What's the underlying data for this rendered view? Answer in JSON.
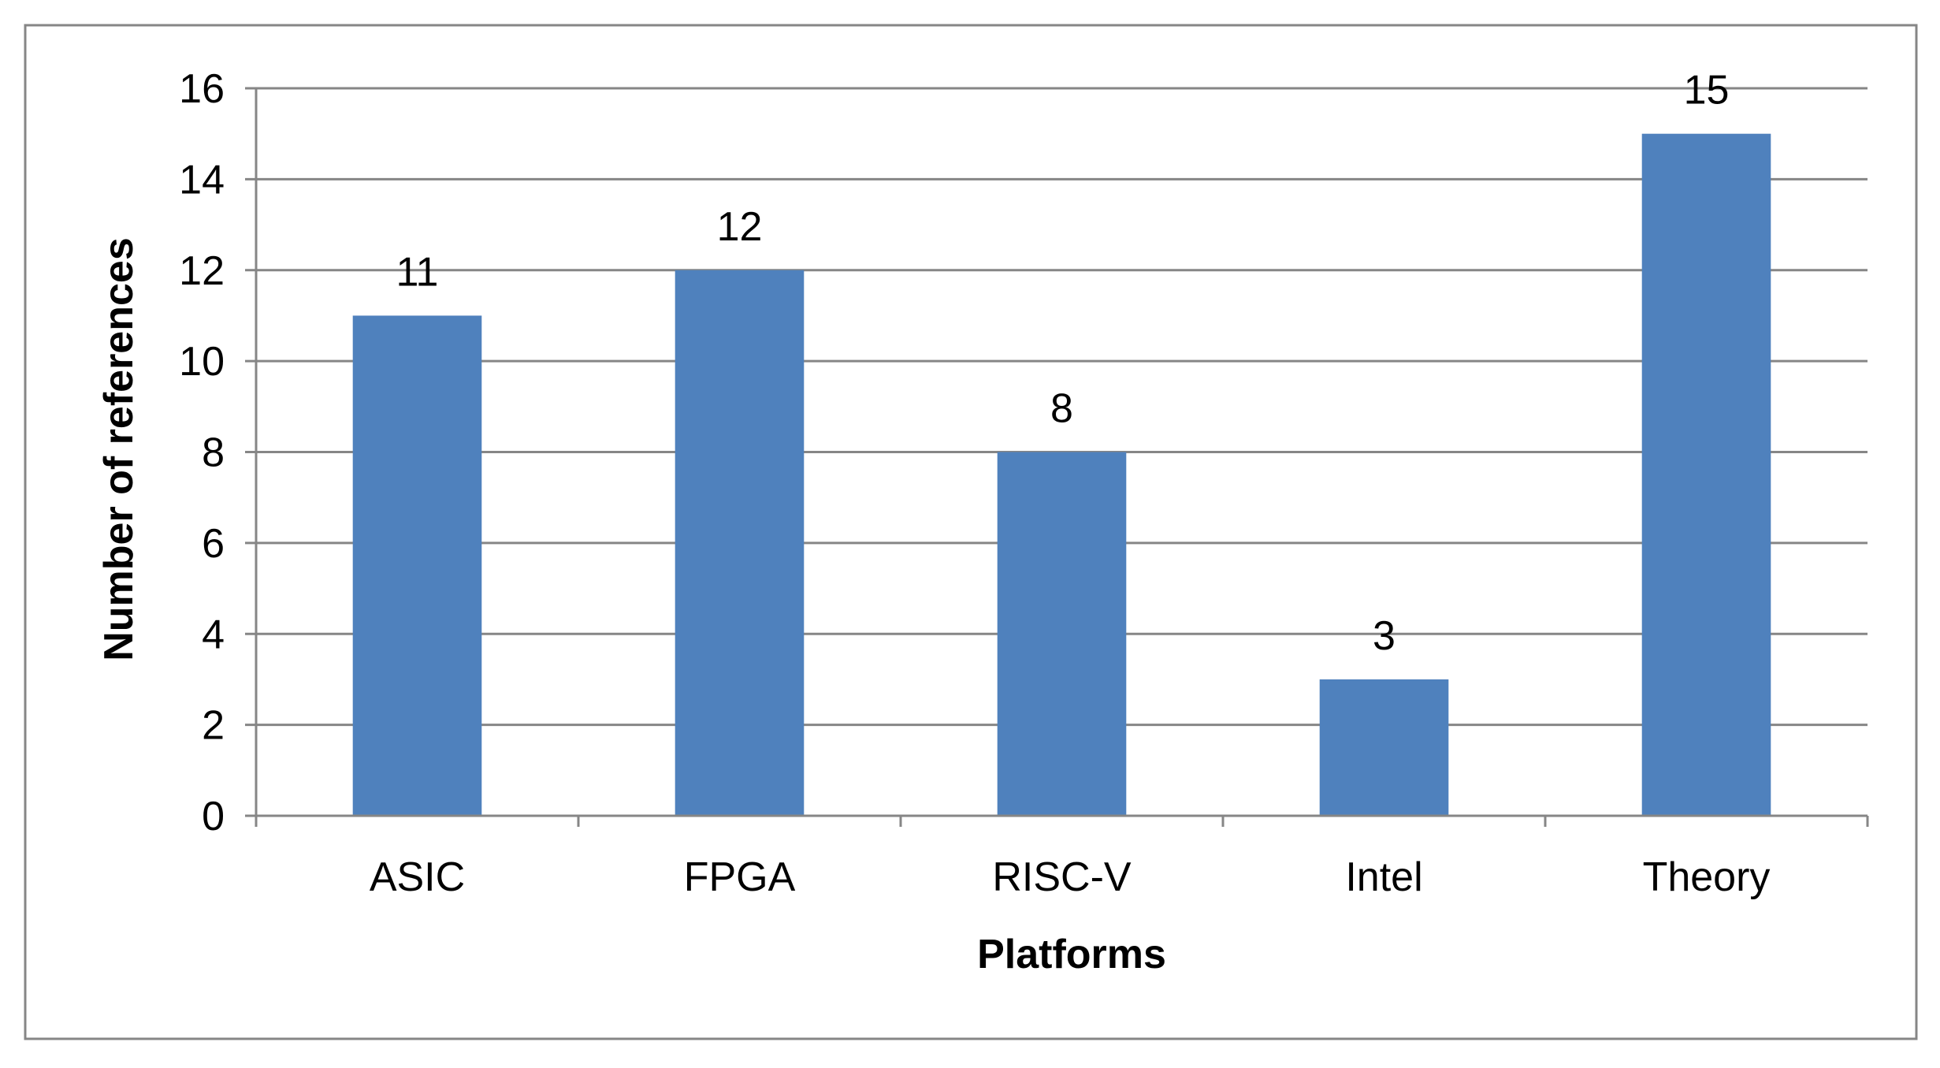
{
  "colors": {
    "bar": "#4F81BD",
    "grid": "#868686",
    "axis": "#868686",
    "border": "#868686",
    "text": "#000000"
  },
  "chart_data": {
    "type": "bar",
    "categories": [
      "ASIC",
      "FPGA",
      "RISC-V",
      "Intel",
      "Theory"
    ],
    "values": [
      11,
      12,
      8,
      3,
      15
    ],
    "data_labels": [
      "11",
      "12",
      "8",
      "3",
      "15"
    ],
    "title": "",
    "xlabel": "Platforms",
    "ylabel": "Number of references",
    "ylim": [
      0,
      16
    ],
    "yticks": [
      0,
      2,
      4,
      6,
      8,
      10,
      12,
      14,
      16
    ],
    "ytick_labels": [
      "0",
      "2",
      "4",
      "6",
      "8",
      "10",
      "12",
      "14",
      "16"
    ],
    "grid": true,
    "legend": "none"
  }
}
